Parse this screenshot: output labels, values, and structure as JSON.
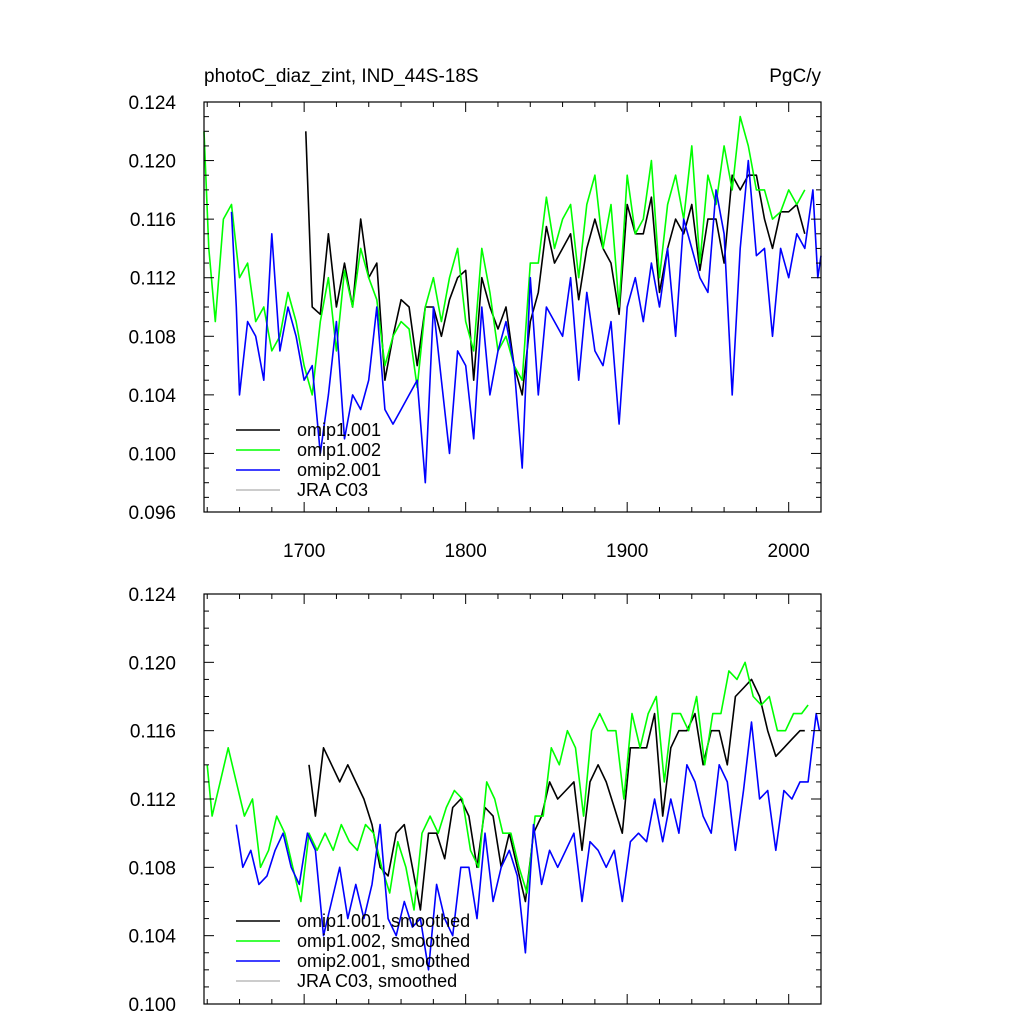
{
  "figure": {
    "title_left": "photoC_diaz_zint, IND_44S-18S",
    "title_right": "PgC/y"
  },
  "colors": {
    "omip1.001": "#000000",
    "omip1.002": "#00ff00",
    "omip2.001": "#0000ff",
    "JRA C03": "#bbbbbb"
  },
  "chart_data": [
    {
      "type": "line",
      "panel": "top",
      "title": "photoC_diaz_zint, IND_44S-18S",
      "units": "PgC/y",
      "xlim": [
        1638,
        2020
      ],
      "ylim": [
        0.096,
        0.124
      ],
      "x_ticks": [
        1700,
        1800,
        1900,
        2000
      ],
      "x_tick_labels": [
        "1700",
        "1800",
        "1900",
        "2000"
      ],
      "y_ticks": [
        0.096,
        0.1,
        0.104,
        0.108,
        0.112,
        0.116,
        0.12,
        0.124
      ],
      "y_tick_labels": [
        "0.096",
        "0.100",
        "0.104",
        "0.108",
        "0.112",
        "0.116",
        "0.120",
        "0.124"
      ],
      "legend_position": "bottom-left",
      "grid": false,
      "series": [
        {
          "name": "omip1.001",
          "color": "#000000",
          "x": [
            1701,
            1705,
            1710,
            1715,
            1720,
            1725,
            1730,
            1735,
            1740,
            1745,
            1750,
            1755,
            1760,
            1765,
            1770,
            1775,
            1780,
            1785,
            1790,
            1795,
            1800,
            1805,
            1810,
            1815,
            1820,
            1825,
            1830,
            1835,
            1840,
            1845,
            1850,
            1855,
            1860,
            1865,
            1870,
            1875,
            1880,
            1885,
            1890,
            1895,
            1900,
            1905,
            1910,
            1915,
            1920,
            1925,
            1930,
            1935,
            1940,
            1945,
            1950,
            1955,
            1960,
            1965,
            1970,
            1975,
            1980,
            1985,
            1990,
            1995,
            2000,
            2005,
            2010
          ],
          "y": [
            0.122,
            0.11,
            0.1095,
            0.115,
            0.11,
            0.113,
            0.11,
            0.116,
            0.112,
            0.113,
            0.105,
            0.108,
            0.1105,
            0.11,
            0.106,
            0.11,
            0.11,
            0.108,
            0.1105,
            0.112,
            0.1125,
            0.105,
            0.112,
            0.11,
            0.1085,
            0.11,
            0.106,
            0.104,
            0.109,
            0.111,
            0.1155,
            0.113,
            0.114,
            0.115,
            0.1105,
            0.114,
            0.116,
            0.114,
            0.113,
            0.1095,
            0.117,
            0.115,
            0.115,
            0.1175,
            0.111,
            0.114,
            0.116,
            0.115,
            0.117,
            0.1125,
            0.116,
            0.116,
            0.113,
            0.119,
            0.118,
            0.119,
            0.119,
            0.116,
            0.114,
            0.1165,
            0.1165,
            0.117,
            0.115
          ]
        },
        {
          "name": "omip1.002",
          "color": "#00ff00",
          "x": [
            1638,
            1641,
            1645,
            1650,
            1655,
            1660,
            1665,
            1670,
            1675,
            1680,
            1685,
            1690,
            1695,
            1700,
            1705,
            1710,
            1715,
            1720,
            1725,
            1730,
            1735,
            1740,
            1745,
            1750,
            1755,
            1760,
            1765,
            1770,
            1775,
            1780,
            1785,
            1790,
            1795,
            1800,
            1805,
            1810,
            1815,
            1820,
            1825,
            1830,
            1835,
            1840,
            1845,
            1850,
            1855,
            1860,
            1865,
            1870,
            1875,
            1880,
            1885,
            1890,
            1895,
            1900,
            1905,
            1910,
            1915,
            1920,
            1925,
            1930,
            1935,
            1940,
            1945,
            1950,
            1955,
            1960,
            1965,
            1970,
            1975,
            1980,
            1985,
            1990,
            1995,
            2000,
            2005,
            2010
          ],
          "y": [
            0.122,
            0.114,
            0.109,
            0.116,
            0.117,
            0.112,
            0.113,
            0.109,
            0.11,
            0.107,
            0.108,
            0.111,
            0.109,
            0.106,
            0.104,
            0.109,
            0.112,
            0.107,
            0.1125,
            0.11,
            0.114,
            0.112,
            0.1105,
            0.106,
            0.108,
            0.109,
            0.1085,
            0.1045,
            0.11,
            0.112,
            0.109,
            0.112,
            0.114,
            0.109,
            0.107,
            0.114,
            0.111,
            0.107,
            0.108,
            0.106,
            0.105,
            0.113,
            0.113,
            0.1175,
            0.114,
            0.116,
            0.117,
            0.112,
            0.117,
            0.119,
            0.114,
            0.117,
            0.11,
            0.119,
            0.115,
            0.116,
            0.12,
            0.112,
            0.117,
            0.119,
            0.116,
            0.121,
            0.113,
            0.119,
            0.117,
            0.121,
            0.118,
            0.123,
            0.121,
            0.118,
            0.118,
            0.116,
            0.1165,
            0.118,
            0.117,
            0.118
          ]
        },
        {
          "name": "omip2.001",
          "color": "#0000ff",
          "x": [
            1655,
            1658,
            1660,
            1665,
            1670,
            1675,
            1680,
            1685,
            1690,
            1695,
            1700,
            1705,
            1710,
            1715,
            1720,
            1725,
            1730,
            1735,
            1740,
            1745,
            1750,
            1755,
            1760,
            1765,
            1770,
            1775,
            1780,
            1785,
            1790,
            1795,
            1800,
            1805,
            1810,
            1815,
            1820,
            1825,
            1830,
            1835,
            1840,
            1845,
            1850,
            1855,
            1860,
            1865,
            1870,
            1875,
            1880,
            1885,
            1890,
            1895,
            1900,
            1905,
            1910,
            1915,
            1920,
            1925,
            1930,
            1935,
            1940,
            1945,
            1950,
            1955,
            1960,
            1965,
            1970,
            1975,
            1980,
            1985,
            1990,
            1995,
            2000,
            2005,
            2010,
            2015,
            2018,
            2020
          ],
          "y": [
            0.1165,
            0.11,
            0.104,
            0.109,
            0.108,
            0.105,
            0.115,
            0.107,
            0.11,
            0.108,
            0.105,
            0.106,
            0.1,
            0.104,
            0.109,
            0.101,
            0.104,
            0.103,
            0.105,
            0.11,
            0.103,
            0.102,
            0.103,
            0.104,
            0.105,
            0.098,
            0.11,
            0.105,
            0.1,
            0.107,
            0.106,
            0.101,
            0.11,
            0.104,
            0.107,
            0.109,
            0.106,
            0.099,
            0.112,
            0.104,
            0.11,
            0.109,
            0.108,
            0.112,
            0.105,
            0.111,
            0.107,
            0.106,
            0.109,
            0.102,
            0.11,
            0.112,
            0.109,
            0.113,
            0.11,
            0.114,
            0.108,
            0.116,
            0.114,
            0.112,
            0.111,
            0.118,
            0.115,
            0.104,
            0.114,
            0.12,
            0.1135,
            0.114,
            0.108,
            0.114,
            0.112,
            0.115,
            0.114,
            0.118,
            0.112,
            0.1135
          ]
        },
        {
          "name": "JRA C03",
          "color": "#bbbbbb",
          "x": [],
          "y": []
        }
      ]
    },
    {
      "type": "line",
      "panel": "bottom",
      "xlim": [
        1638,
        2020
      ],
      "ylim": [
        0.1,
        0.124
      ],
      "x_ticks": [
        1700,
        1800,
        1900,
        2000
      ],
      "x_tick_labels": [],
      "y_ticks": [
        0.1,
        0.104,
        0.108,
        0.112,
        0.116,
        0.12,
        0.124
      ],
      "y_tick_labels": [
        "0.100",
        "0.104",
        "0.108",
        "0.112",
        "0.116",
        "0.120",
        "0.124"
      ],
      "legend_position": "bottom-left",
      "grid": false,
      "series": [
        {
          "name": "omip1.001, smoothed",
          "color": "#000000",
          "x": [
            1703,
            1707,
            1712,
            1717,
            1722,
            1727,
            1732,
            1737,
            1742,
            1747,
            1752,
            1757,
            1762,
            1767,
            1772,
            1777,
            1782,
            1787,
            1792,
            1797,
            1802,
            1807,
            1812,
            1817,
            1822,
            1827,
            1832,
            1837,
            1842,
            1847,
            1852,
            1857,
            1862,
            1867,
            1872,
            1877,
            1882,
            1887,
            1892,
            1897,
            1902,
            1907,
            1912,
            1917,
            1922,
            1927,
            1932,
            1937,
            1942,
            1947,
            1952,
            1957,
            1962,
            1967,
            1972,
            1977,
            1982,
            1987,
            1992,
            1997,
            2002,
            2007,
            2010
          ],
          "y": [
            0.114,
            0.111,
            0.115,
            0.114,
            0.113,
            0.114,
            0.113,
            0.112,
            0.1105,
            0.108,
            0.1075,
            0.11,
            0.1105,
            0.108,
            0.1055,
            0.11,
            0.11,
            0.1085,
            0.1115,
            0.112,
            0.111,
            0.108,
            0.1115,
            0.111,
            0.108,
            0.11,
            0.108,
            0.106,
            0.11,
            0.111,
            0.113,
            0.112,
            0.1125,
            0.113,
            0.109,
            0.113,
            0.114,
            0.113,
            0.1115,
            0.11,
            0.115,
            0.115,
            0.115,
            0.117,
            0.111,
            0.115,
            0.116,
            0.116,
            0.117,
            0.114,
            0.116,
            0.116,
            0.114,
            0.118,
            0.1185,
            0.119,
            0.118,
            0.116,
            0.1145,
            0.115,
            0.1155,
            0.116,
            0.116
          ]
        },
        {
          "name": "omip1.002, smoothed",
          "color": "#00ff00",
          "x": [
            1640,
            1643,
            1648,
            1653,
            1658,
            1663,
            1668,
            1673,
            1678,
            1683,
            1688,
            1693,
            1698,
            1703,
            1708,
            1713,
            1718,
            1723,
            1728,
            1733,
            1738,
            1743,
            1748,
            1753,
            1758,
            1763,
            1768,
            1773,
            1778,
            1783,
            1788,
            1793,
            1798,
            1803,
            1808,
            1813,
            1818,
            1823,
            1828,
            1833,
            1838,
            1843,
            1848,
            1853,
            1858,
            1863,
            1868,
            1873,
            1878,
            1883,
            1888,
            1893,
            1898,
            1903,
            1908,
            1913,
            1918,
            1923,
            1928,
            1933,
            1938,
            1943,
            1948,
            1953,
            1958,
            1963,
            1968,
            1973,
            1978,
            1983,
            1988,
            1993,
            1998,
            2003,
            2008,
            2012
          ],
          "y": [
            0.114,
            0.111,
            0.113,
            0.115,
            0.113,
            0.111,
            0.112,
            0.108,
            0.109,
            0.111,
            0.11,
            0.108,
            0.106,
            0.11,
            0.109,
            0.11,
            0.109,
            0.1105,
            0.1095,
            0.109,
            0.1105,
            0.11,
            0.108,
            0.1065,
            0.1095,
            0.108,
            0.1055,
            0.11,
            0.111,
            0.11,
            0.1115,
            0.1125,
            0.112,
            0.109,
            0.108,
            0.113,
            0.112,
            0.11,
            0.11,
            0.108,
            0.1065,
            0.111,
            0.111,
            0.115,
            0.114,
            0.116,
            0.115,
            0.111,
            0.116,
            0.117,
            0.116,
            0.116,
            0.112,
            0.117,
            0.115,
            0.117,
            0.118,
            0.113,
            0.117,
            0.117,
            0.116,
            0.118,
            0.114,
            0.117,
            0.117,
            0.1195,
            0.119,
            0.12,
            0.118,
            0.1175,
            0.118,
            0.116,
            0.116,
            0.117,
            0.117,
            0.1175
          ]
        },
        {
          "name": "omip2.001, smoothed",
          "color": "#0000ff",
          "x": [
            1658,
            1662,
            1667,
            1672,
            1677,
            1682,
            1687,
            1692,
            1697,
            1702,
            1707,
            1712,
            1717,
            1722,
            1727,
            1732,
            1737,
            1742,
            1747,
            1752,
            1757,
            1762,
            1767,
            1772,
            1777,
            1782,
            1787,
            1792,
            1797,
            1802,
            1807,
            1812,
            1817,
            1822,
            1827,
            1832,
            1837,
            1842,
            1847,
            1852,
            1857,
            1862,
            1867,
            1872,
            1877,
            1882,
            1887,
            1892,
            1897,
            1902,
            1907,
            1912,
            1917,
            1922,
            1927,
            1932,
            1937,
            1942,
            1947,
            1952,
            1957,
            1962,
            1967,
            1972,
            1977,
            1982,
            1987,
            1992,
            1997,
            2002,
            2007,
            2012,
            2017,
            2019
          ],
          "y": [
            0.1105,
            0.108,
            0.109,
            0.107,
            0.1075,
            0.109,
            0.11,
            0.108,
            0.107,
            0.11,
            0.109,
            0.104,
            0.106,
            0.108,
            0.105,
            0.107,
            0.105,
            0.107,
            0.1105,
            0.105,
            0.104,
            0.106,
            0.1045,
            0.105,
            0.102,
            0.107,
            0.105,
            0.104,
            0.108,
            0.108,
            0.105,
            0.11,
            0.106,
            0.108,
            0.109,
            0.1075,
            0.103,
            0.1105,
            0.107,
            0.109,
            0.108,
            0.109,
            0.11,
            0.106,
            0.1095,
            0.109,
            0.108,
            0.109,
            0.106,
            0.1095,
            0.11,
            0.1095,
            0.112,
            0.1095,
            0.112,
            0.11,
            0.114,
            0.113,
            0.111,
            0.11,
            0.114,
            0.113,
            0.109,
            0.1125,
            0.1165,
            0.112,
            0.1125,
            0.109,
            0.1125,
            0.112,
            0.113,
            0.113,
            0.117,
            0.116
          ]
        },
        {
          "name": "JRA C03, smoothed",
          "color": "#bbbbbb",
          "x": [],
          "y": []
        }
      ]
    }
  ]
}
